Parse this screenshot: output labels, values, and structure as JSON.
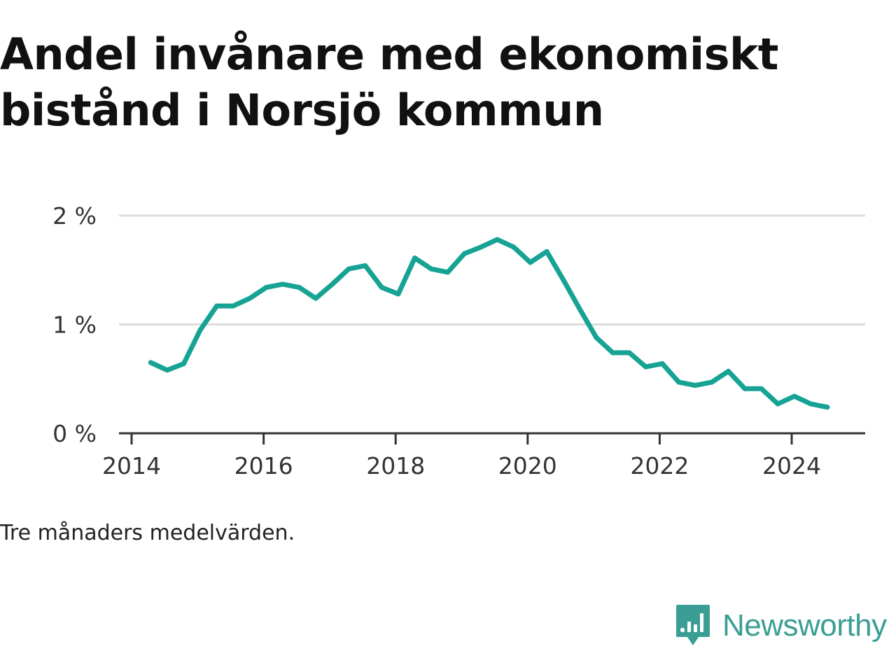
{
  "title": "Andel invånare med ekonomiskt bistånd i Norsjö kommun",
  "note": "Tre månaders medelvärden.",
  "brand": {
    "name": "Newsworthy",
    "icon": "newsworthy-logo-icon",
    "color": "#3a9e94"
  },
  "chart_data": {
    "type": "line",
    "title": "Andel invånare med ekonomiskt bistånd i Norsjö kommun",
    "xlabel": "",
    "ylabel": "",
    "xlim": [
      2013.8,
      2025.1
    ],
    "ylim": [
      0,
      2
    ],
    "grid": true,
    "legend": "none",
    "y_ticks": [
      {
        "value": 0,
        "label": "0 %"
      },
      {
        "value": 1,
        "label": "1 %"
      },
      {
        "value": 2,
        "label": "2 %"
      }
    ],
    "x_ticks": [
      {
        "value": 2014,
        "label": "2014"
      },
      {
        "value": 2016,
        "label": "2016"
      },
      {
        "value": 2018,
        "label": "2018"
      },
      {
        "value": 2020,
        "label": "2020"
      },
      {
        "value": 2022,
        "label": "2022"
      },
      {
        "value": 2024,
        "label": "2024"
      }
    ],
    "series": [
      {
        "color": "#16a394",
        "x": [
          2014.29,
          2014.54,
          2014.79,
          2015.04,
          2015.29,
          2015.54,
          2015.79,
          2016.04,
          2016.29,
          2016.54,
          2016.79,
          2017.04,
          2017.29,
          2017.54,
          2017.79,
          2018.04,
          2018.29,
          2018.54,
          2018.79,
          2019.04,
          2019.29,
          2019.54,
          2019.79,
          2020.04,
          2020.29,
          2020.54,
          2020.79,
          2021.04,
          2021.29,
          2021.54,
          2021.79,
          2022.04,
          2022.29,
          2022.54,
          2022.79,
          2023.04,
          2023.29,
          2023.54,
          2023.79,
          2024.04,
          2024.29,
          2024.54
        ],
        "values": [
          0.65,
          0.58,
          0.64,
          0.95,
          1.17,
          1.17,
          1.24,
          1.34,
          1.37,
          1.34,
          1.24,
          1.37,
          1.51,
          1.54,
          1.34,
          1.28,
          1.61,
          1.51,
          1.48,
          1.65,
          1.71,
          1.78,
          1.71,
          1.57,
          1.67,
          1.41,
          1.14,
          0.88,
          0.74,
          0.74,
          0.61,
          0.64,
          0.47,
          0.44,
          0.47,
          0.57,
          0.41,
          0.41,
          0.27,
          0.34,
          0.27,
          0.24
        ]
      }
    ]
  }
}
